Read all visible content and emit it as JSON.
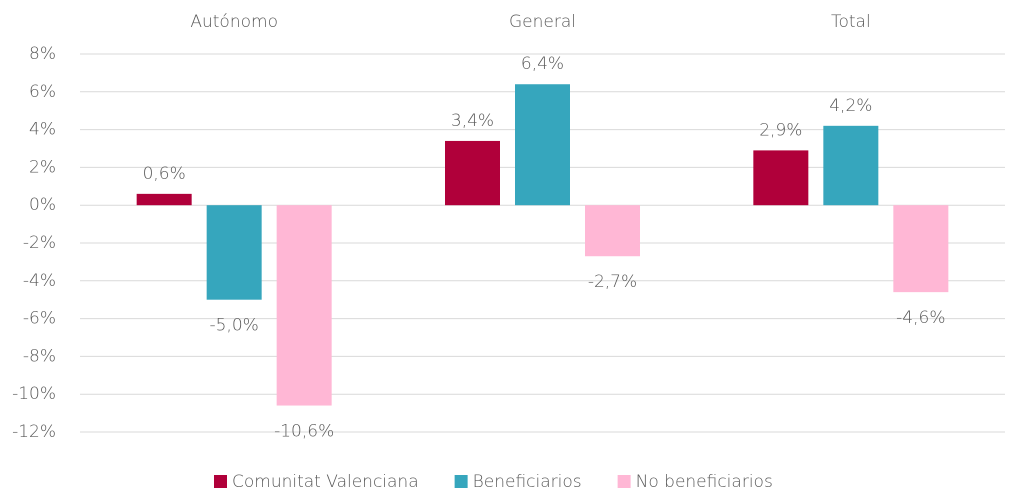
{
  "chart_data": {
    "type": "bar",
    "categories": [
      "Autónomo",
      "General",
      "Total"
    ],
    "series": [
      {
        "name": "Comunitat Valenciana",
        "color": "#b0003a",
        "values": [
          0.6,
          3.4,
          2.9
        ],
        "value_labels": [
          "0,6%",
          "3,4%",
          "2,9%"
        ]
      },
      {
        "name": "Beneficiarios",
        "color": "#36a6bd",
        "values": [
          -5.0,
          6.4,
          4.2
        ],
        "value_labels": [
          "-5,0%",
          "6,4%",
          "4,2%"
        ]
      },
      {
        "name": "No beneficiarios",
        "color": "#ffb7d5",
        "values": [
          -10.6,
          -2.7,
          -4.6
        ],
        "value_labels": [
          "-10,6%",
          "-2,7%",
          "-4,6%"
        ]
      }
    ],
    "ylim": [
      -12,
      8
    ],
    "yticks": [
      {
        "value": -12,
        "label": "-12%"
      },
      {
        "value": -10,
        "label": "-10%"
      },
      {
        "value": -8,
        "label": "-8%"
      },
      {
        "value": -6,
        "label": "-6%"
      },
      {
        "value": -4,
        "label": "-4%"
      },
      {
        "value": -2,
        "label": "-2%"
      },
      {
        "value": 0,
        "label": "0%"
      },
      {
        "value": 2,
        "label": "2%"
      },
      {
        "value": 4,
        "label": "4%"
      },
      {
        "value": 6,
        "label": "6%"
      },
      {
        "value": 8,
        "label": "8%"
      }
    ],
    "grid": true,
    "legend": "bottom"
  }
}
